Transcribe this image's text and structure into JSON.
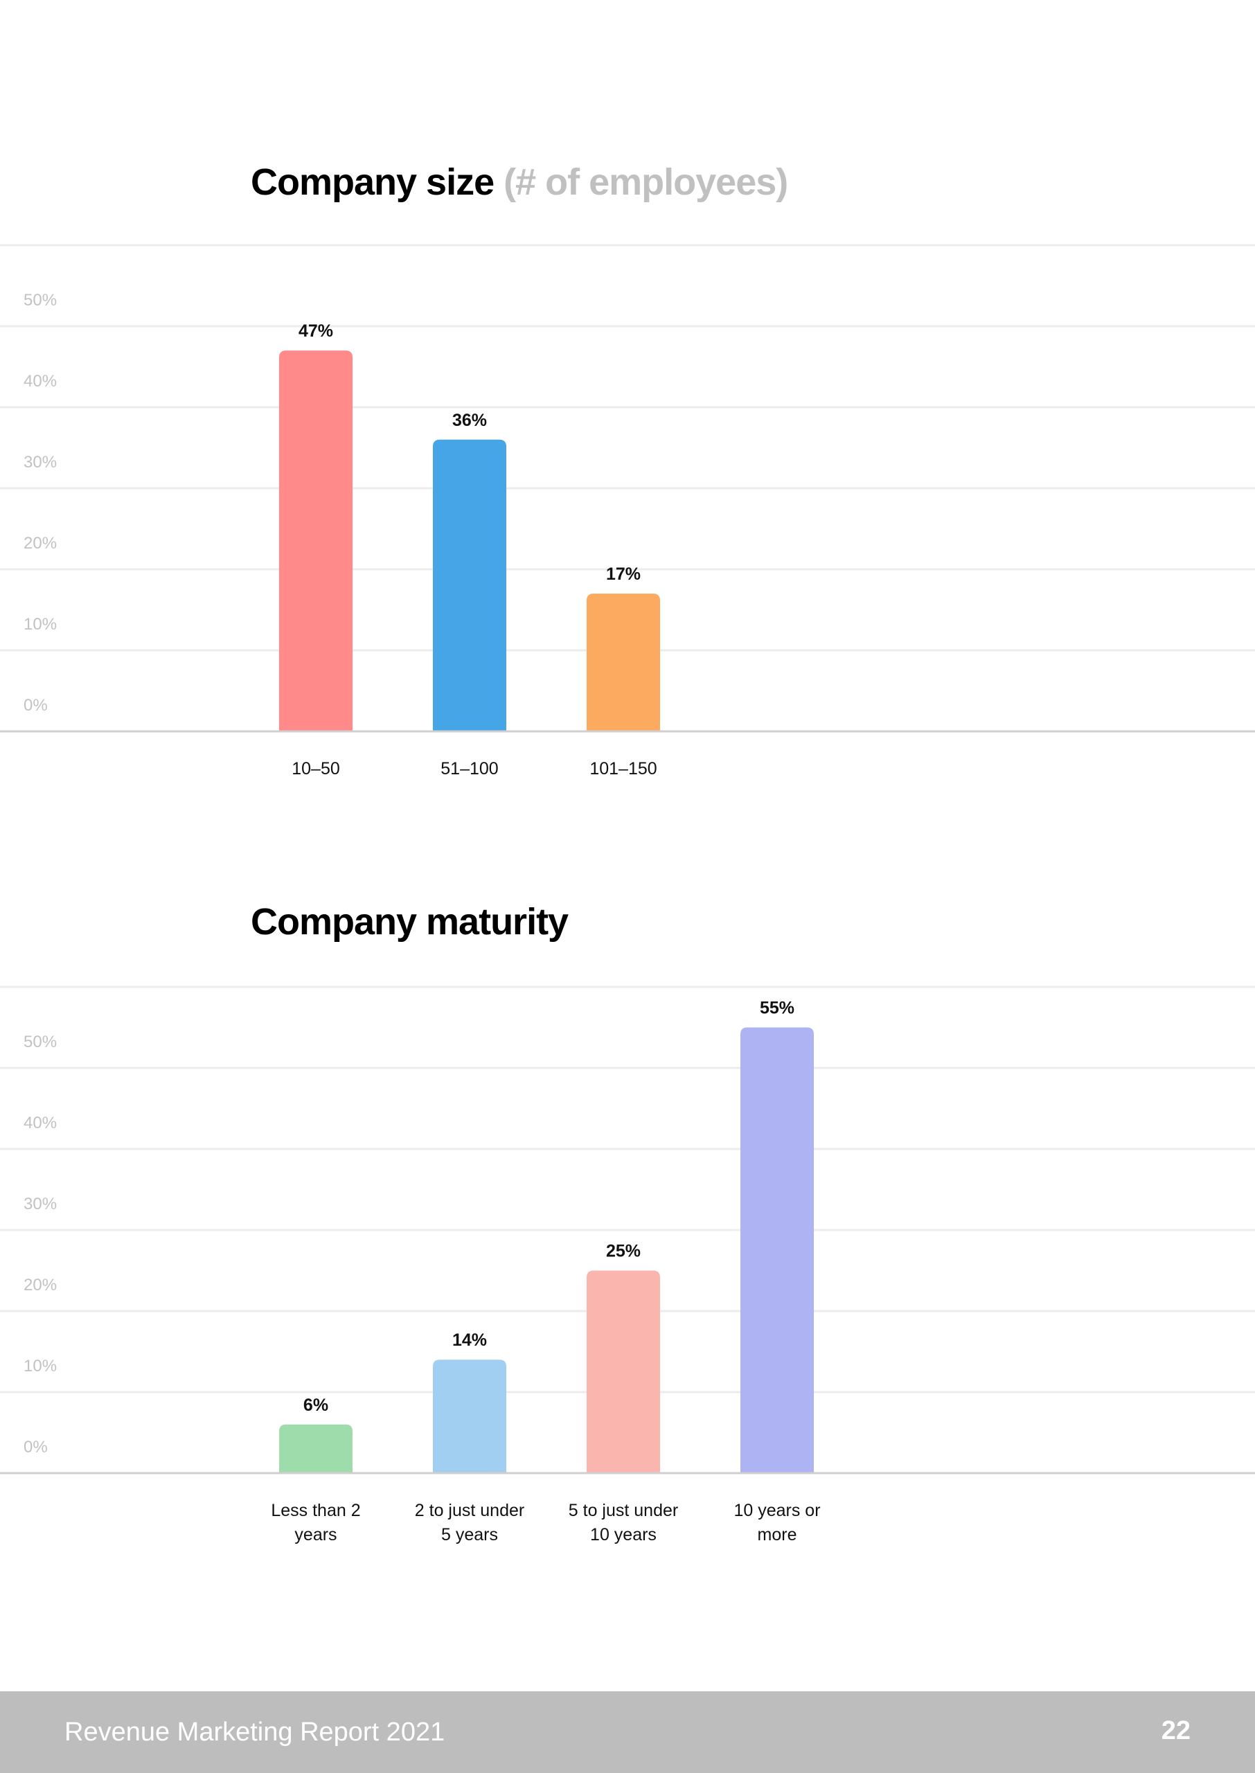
{
  "chart_data": [
    {
      "type": "bar",
      "title": "Company size",
      "subtitle": "(# of employees)",
      "categories": [
        "10–50",
        "51–100",
        "101–150"
      ],
      "values": [
        47,
        36,
        17
      ],
      "value_labels": [
        "47%",
        "36%",
        "17%"
      ],
      "colors": [
        "#ff8a89",
        "#46a5e6",
        "#fbaa60"
      ],
      "yticks": [
        "0%",
        "10%",
        "20%",
        "30%",
        "40%",
        "50%"
      ],
      "ylim": [
        0,
        60
      ],
      "grid": true,
      "legend": "none"
    },
    {
      "type": "bar",
      "title": "Company maturity",
      "categories": [
        "Less than 2 years",
        "2 to just under 5 years",
        "5 to just under 10 years",
        "10 years or more"
      ],
      "category_lines": [
        [
          "Less than 2",
          "years"
        ],
        [
          "2 to just under",
          "5 years"
        ],
        [
          "5 to just under",
          "10 years"
        ],
        [
          "10 years or",
          "more"
        ]
      ],
      "values": [
        6,
        14,
        25,
        55
      ],
      "value_labels": [
        "6%",
        "14%",
        "25%",
        "55%"
      ],
      "colors": [
        "#9edcab",
        "#a0cff2",
        "#fbb5af",
        "#adb3f3"
      ],
      "yticks": [
        "0%",
        "10%",
        "20%",
        "30%",
        "40%",
        "50%"
      ],
      "ylim": [
        0,
        60
      ],
      "grid": true,
      "legend": "none"
    }
  ],
  "footer": {
    "report_title": "Revenue Marketing Report 2021",
    "page_number": "22"
  }
}
